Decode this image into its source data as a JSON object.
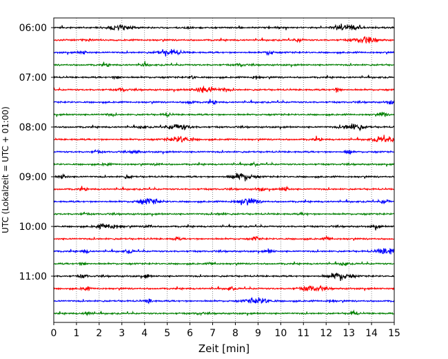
{
  "chart_data": {
    "type": "line",
    "title": "",
    "xlabel": "Zeit  [min]",
    "ylabel": "UTC (Lokalzeit = UTC + 01:00)",
    "xlim": [
      0,
      15
    ],
    "xticks": [
      "0",
      "1",
      "2",
      "3",
      "4",
      "5",
      "6",
      "7",
      "8",
      "9",
      "10",
      "11",
      "12",
      "13",
      "14",
      "15"
    ],
    "yticks": [
      "06:00",
      "07:00",
      "08:00",
      "09:00",
      "10:00",
      "11:00"
    ],
    "grid": "vertical dotted at each minute",
    "trace_interval_min": 15,
    "trace_colors": [
      "#000000",
      "#ff0000",
      "#0000ff",
      "#008000"
    ],
    "traces": [
      {
        "start": "06:00",
        "color": "#000000",
        "events": [
          [
            2.9,
            0.8
          ],
          [
            12.9,
            0.9
          ],
          [
            6.0,
            0.3
          ]
        ]
      },
      {
        "start": "06:15",
        "color": "#ff0000",
        "events": [
          [
            1.5,
            0.4
          ],
          [
            10.8,
            0.5
          ],
          [
            13.7,
            0.8
          ]
        ]
      },
      {
        "start": "06:30",
        "color": "#0000ff",
        "events": [
          [
            1.3,
            0.4
          ],
          [
            5.1,
            0.8
          ],
          [
            9.5,
            0.7
          ]
        ]
      },
      {
        "start": "06:45",
        "color": "#008000",
        "events": [
          [
            2.3,
            0.4
          ],
          [
            4.0,
            0.5
          ],
          [
            8.2,
            0.5
          ]
        ]
      },
      {
        "start": "07:00",
        "color": "#000000",
        "events": [
          [
            2.8,
            0.5
          ],
          [
            6.1,
            0.4
          ],
          [
            8.9,
            0.5
          ]
        ]
      },
      {
        "start": "07:15",
        "color": "#ff0000",
        "events": [
          [
            3.0,
            0.6
          ],
          [
            6.7,
            0.9
          ],
          [
            7.6,
            0.5
          ],
          [
            12.5,
            0.6
          ]
        ]
      },
      {
        "start": "07:30",
        "color": "#0000ff",
        "events": [
          [
            6.0,
            0.5
          ],
          [
            7.0,
            0.5
          ],
          [
            14.8,
            0.5
          ]
        ]
      },
      {
        "start": "07:45",
        "color": "#008000",
        "events": [
          [
            2.5,
            0.4
          ],
          [
            5.0,
            0.5
          ],
          [
            14.5,
            0.6
          ]
        ]
      },
      {
        "start": "08:00",
        "color": "#000000",
        "events": [
          [
            3.9,
            0.4
          ],
          [
            5.5,
            0.8
          ],
          [
            13.2,
            0.9
          ]
        ]
      },
      {
        "start": "08:15",
        "color": "#ff0000",
        "events": [
          [
            5.6,
            0.9
          ],
          [
            11.6,
            0.5
          ],
          [
            14.6,
            0.9
          ]
        ]
      },
      {
        "start": "08:30",
        "color": "#0000ff",
        "events": [
          [
            1.9,
            0.4
          ],
          [
            3.6,
            0.5
          ],
          [
            13.0,
            0.7
          ]
        ]
      },
      {
        "start": "08:45",
        "color": "#008000",
        "events": [
          [
            2.3,
            0.3
          ],
          [
            4.6,
            0.3
          ],
          [
            8.8,
            0.4
          ]
        ]
      },
      {
        "start": "09:00",
        "color": "#000000",
        "events": [
          [
            0.4,
            0.6
          ],
          [
            3.3,
            0.5
          ],
          [
            8.3,
            1.0
          ]
        ]
      },
      {
        "start": "09:15",
        "color": "#ff0000",
        "events": [
          [
            1.3,
            0.4
          ],
          [
            9.1,
            0.5
          ],
          [
            10.2,
            0.7
          ]
        ]
      },
      {
        "start": "09:30",
        "color": "#0000ff",
        "events": [
          [
            4.2,
            0.8
          ],
          [
            8.5,
            0.9
          ],
          [
            14.6,
            0.7
          ]
        ]
      },
      {
        "start": "09:45",
        "color": "#008000",
        "events": [
          [
            1.3,
            0.3
          ],
          [
            7.4,
            0.4
          ],
          [
            11.0,
            0.3
          ]
        ]
      },
      {
        "start": "10:00",
        "color": "#000000",
        "events": [
          [
            2.4,
            0.8
          ],
          [
            4.2,
            0.6
          ],
          [
            14.2,
            0.7
          ]
        ]
      },
      {
        "start": "10:15",
        "color": "#ff0000",
        "events": [
          [
            5.4,
            0.4
          ],
          [
            8.9,
            0.6
          ],
          [
            12.1,
            0.6
          ]
        ]
      },
      {
        "start": "10:30",
        "color": "#0000ff",
        "events": [
          [
            1.4,
            0.5
          ],
          [
            3.3,
            0.5
          ],
          [
            9.5,
            0.6
          ],
          [
            14.7,
            0.9
          ]
        ]
      },
      {
        "start": "10:45",
        "color": "#008000",
        "events": [
          [
            1.3,
            0.5
          ],
          [
            7.0,
            0.4
          ],
          [
            12.8,
            0.6
          ]
        ]
      },
      {
        "start": "11:00",
        "color": "#000000",
        "events": [
          [
            1.3,
            0.5
          ],
          [
            4.1,
            0.5
          ],
          [
            12.6,
            1.0
          ]
        ]
      },
      {
        "start": "11:15",
        "color": "#ff0000",
        "events": [
          [
            1.4,
            0.6
          ],
          [
            7.8,
            0.6
          ],
          [
            11.4,
            0.8
          ]
        ]
      },
      {
        "start": "11:30",
        "color": "#0000ff",
        "events": [
          [
            4.2,
            0.6
          ],
          [
            9.0,
            0.9
          ],
          [
            12.2,
            0.4
          ]
        ]
      },
      {
        "start": "11:45",
        "color": "#008000",
        "events": [
          [
            1.5,
            0.6
          ],
          [
            6.4,
            0.3
          ],
          [
            13.2,
            0.7
          ]
        ]
      }
    ]
  }
}
